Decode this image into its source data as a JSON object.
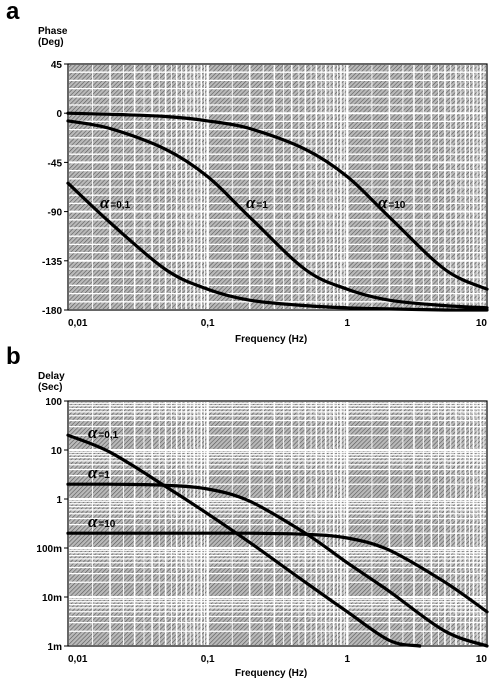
{
  "charts": [
    {
      "panel": "a",
      "ylabel_lines": [
        "Phase",
        "(Deg)"
      ],
      "xlabel": "Frequency  (Hz)",
      "xticks": [
        {
          "value": 0.01,
          "label": "0,01"
        },
        {
          "value": 0.1,
          "label": "0,1"
        },
        {
          "value": 1,
          "label": "1"
        },
        {
          "value": 10,
          "label": "10"
        }
      ],
      "yticks": [
        {
          "value": 45,
          "label": "45"
        },
        {
          "value": 0,
          "label": "0"
        },
        {
          "value": -45,
          "label": "-45"
        },
        {
          "value": -90,
          "label": "-90"
        },
        {
          "value": -135,
          "label": "-135"
        },
        {
          "value": -180,
          "label": "-180"
        }
      ]
    },
    {
      "panel": "b",
      "ylabel_lines": [
        "Delay",
        "(Sec)"
      ],
      "xlabel": "Frequency  (Hz)",
      "xticks": [
        {
          "value": 0.01,
          "label": "0,01"
        },
        {
          "value": 0.1,
          "label": "0,1"
        },
        {
          "value": 1,
          "label": "1"
        },
        {
          "value": 10,
          "label": "10"
        }
      ],
      "yticks": [
        {
          "value": 100,
          "label": "100"
        },
        {
          "value": 10,
          "label": "10"
        },
        {
          "value": 1,
          "label": "1"
        },
        {
          "value": 0.1,
          "label": "100m"
        },
        {
          "value": 0.01,
          "label": "10m"
        },
        {
          "value": 0.001,
          "label": "1m"
        }
      ]
    }
  ],
  "chart_data": [
    {
      "type": "line",
      "title": "a",
      "xlabel": "Frequency  (Hz)",
      "ylabel": "Phase (Deg)",
      "xscale": "log",
      "xlim": [
        0.01,
        10
      ],
      "ylim": [
        -180,
        45
      ],
      "grid": true,
      "series": [
        {
          "name": "α=0,1",
          "x": [
            0.01,
            0.02,
            0.05,
            0.1,
            0.2,
            0.5,
            1,
            2,
            5,
            10
          ],
          "y": [
            -64,
            -100,
            -143,
            -161,
            -171,
            -176,
            -178,
            -179,
            -180,
            -180
          ]
        },
        {
          "name": "α=1",
          "x": [
            0.01,
            0.02,
            0.05,
            0.1,
            0.2,
            0.5,
            1,
            2,
            5,
            10
          ],
          "y": [
            -7,
            -14,
            -33,
            -58,
            -95,
            -143,
            -161,
            -171,
            -176,
            -178
          ]
        },
        {
          "name": "α=10",
          "x": [
            0.01,
            0.02,
            0.05,
            0.1,
            0.2,
            0.5,
            1,
            2,
            5,
            10
          ],
          "y": [
            0,
            -1,
            -3,
            -7,
            -14,
            -33,
            -58,
            -95,
            -143,
            -161
          ]
        }
      ]
    },
    {
      "type": "line",
      "title": "b",
      "xlabel": "Frequency  (Hz)",
      "ylabel": "Delay (Sec)",
      "xscale": "log",
      "yscale": "log",
      "xlim": [
        0.01,
        10
      ],
      "ylim": [
        0.001,
        100
      ],
      "grid": true,
      "series": [
        {
          "name": "α=0,1",
          "x": [
            0.01,
            0.02,
            0.05,
            0.1,
            0.2,
            0.5,
            1,
            2,
            3.3
          ],
          "y": [
            20,
            9,
            1.8,
            0.5,
            0.13,
            0.02,
            0.005,
            0.0013,
            0.001
          ]
        },
        {
          "name": "α=1",
          "x": [
            0.01,
            0.02,
            0.05,
            0.1,
            0.2,
            0.5,
            1,
            2,
            5,
            10
          ],
          "y": [
            2,
            2,
            1.9,
            1.6,
            0.9,
            0.2,
            0.05,
            0.013,
            0.002,
            0.001
          ]
        },
        {
          "name": "α=10",
          "x": [
            0.01,
            0.05,
            0.1,
            0.2,
            0.5,
            1,
            2,
            5,
            10
          ],
          "y": [
            0.2,
            0.2,
            0.2,
            0.2,
            0.19,
            0.16,
            0.09,
            0.02,
            0.005
          ]
        }
      ]
    }
  ]
}
